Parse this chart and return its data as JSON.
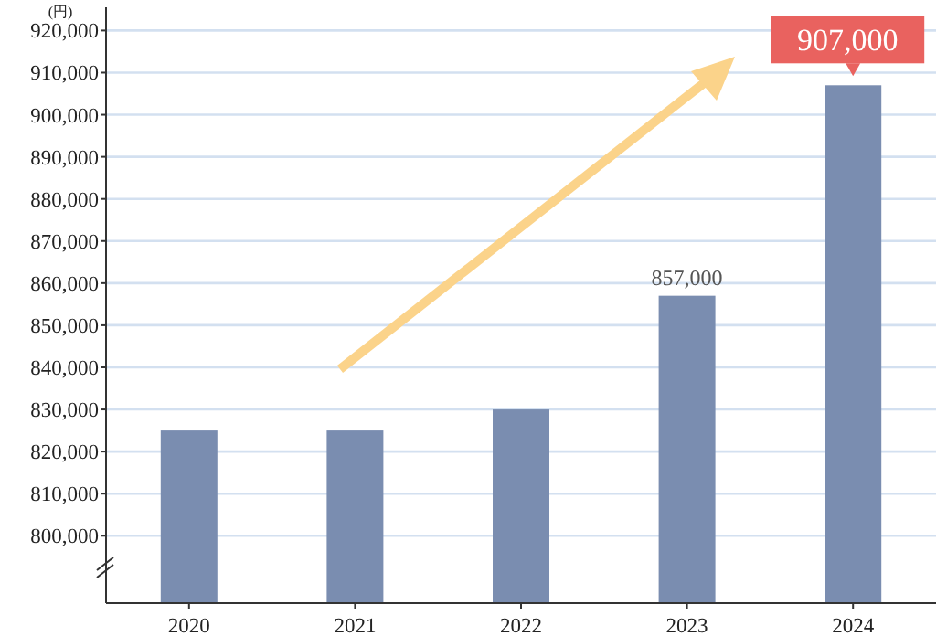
{
  "chart_data": {
    "type": "bar",
    "ylabel": "(円)",
    "categories": [
      "2020",
      "2021",
      "2022",
      "2023",
      "2024"
    ],
    "series": [
      {
        "color": "#7a8db0",
        "values": [
          825000,
          825000,
          830000,
          857000,
          907000
        ],
        "value_labels": [
          null,
          null,
          null,
          "857,000",
          "907,000"
        ]
      }
    ],
    "ylim": [
      784000,
      920000
    ],
    "yticks": [
      {
        "value": 800000,
        "label": "800,000"
      },
      {
        "value": 810000,
        "label": "810,000"
      },
      {
        "value": 820000,
        "label": "820,000"
      },
      {
        "value": 830000,
        "label": "830,000"
      },
      {
        "value": 840000,
        "label": "840,000"
      },
      {
        "value": 850000,
        "label": "850,000"
      },
      {
        "value": 860000,
        "label": "860,000"
      },
      {
        "value": 870000,
        "label": "870,000"
      },
      {
        "value": 880000,
        "label": "880,000"
      },
      {
        "value": 890000,
        "label": "890,000"
      },
      {
        "value": 900000,
        "label": "900,000"
      },
      {
        "value": 910000,
        "label": "910,000"
      },
      {
        "value": 920000,
        "label": "920,000"
      }
    ],
    "grid": "y"
  }
}
